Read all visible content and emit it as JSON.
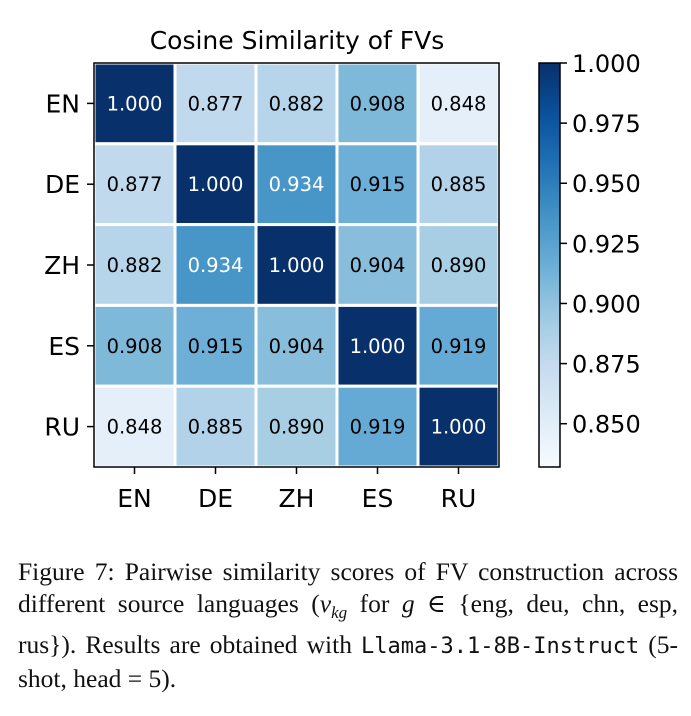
{
  "chart_data": {
    "type": "heatmap",
    "title": "Cosine Similarity of FVs",
    "rows": [
      "EN",
      "DE",
      "ZH",
      "ES",
      "RU"
    ],
    "cols": [
      "EN",
      "DE",
      "ZH",
      "ES",
      "RU"
    ],
    "values": [
      [
        1.0,
        0.877,
        0.882,
        0.908,
        0.848
      ],
      [
        0.877,
        1.0,
        0.934,
        0.915,
        0.885
      ],
      [
        0.882,
        0.934,
        1.0,
        0.904,
        0.89
      ],
      [
        0.908,
        0.915,
        0.904,
        1.0,
        0.919
      ],
      [
        0.848,
        0.885,
        0.89,
        0.919,
        1.0
      ]
    ],
    "colormap": "Blues",
    "colorbar": {
      "min": 0.832,
      "max": 1.0,
      "ticks": [
        1.0,
        0.975,
        0.95,
        0.925,
        0.9,
        0.875,
        0.85
      ],
      "tick_labels": [
        "1.000",
        "0.975",
        "0.950",
        "0.925",
        "0.900",
        "0.875",
        "0.850"
      ]
    },
    "grid": false,
    "legend": "colorbar-right"
  },
  "caption": {
    "fig_label": "Figure 7:",
    "text_1": "Pairwise similarity scores of FV construction across different source languages (",
    "var": "v",
    "var_sub": "kg",
    "for_text": " for ",
    "g": "g",
    "elem": "∈",
    "set": "{eng, deu, chn, esp, rus}",
    "text_2": "). Results are obtained with ",
    "model": "Llama-3.1-8B-Instruct",
    "text_3": " (5-shot, head = 5)."
  }
}
